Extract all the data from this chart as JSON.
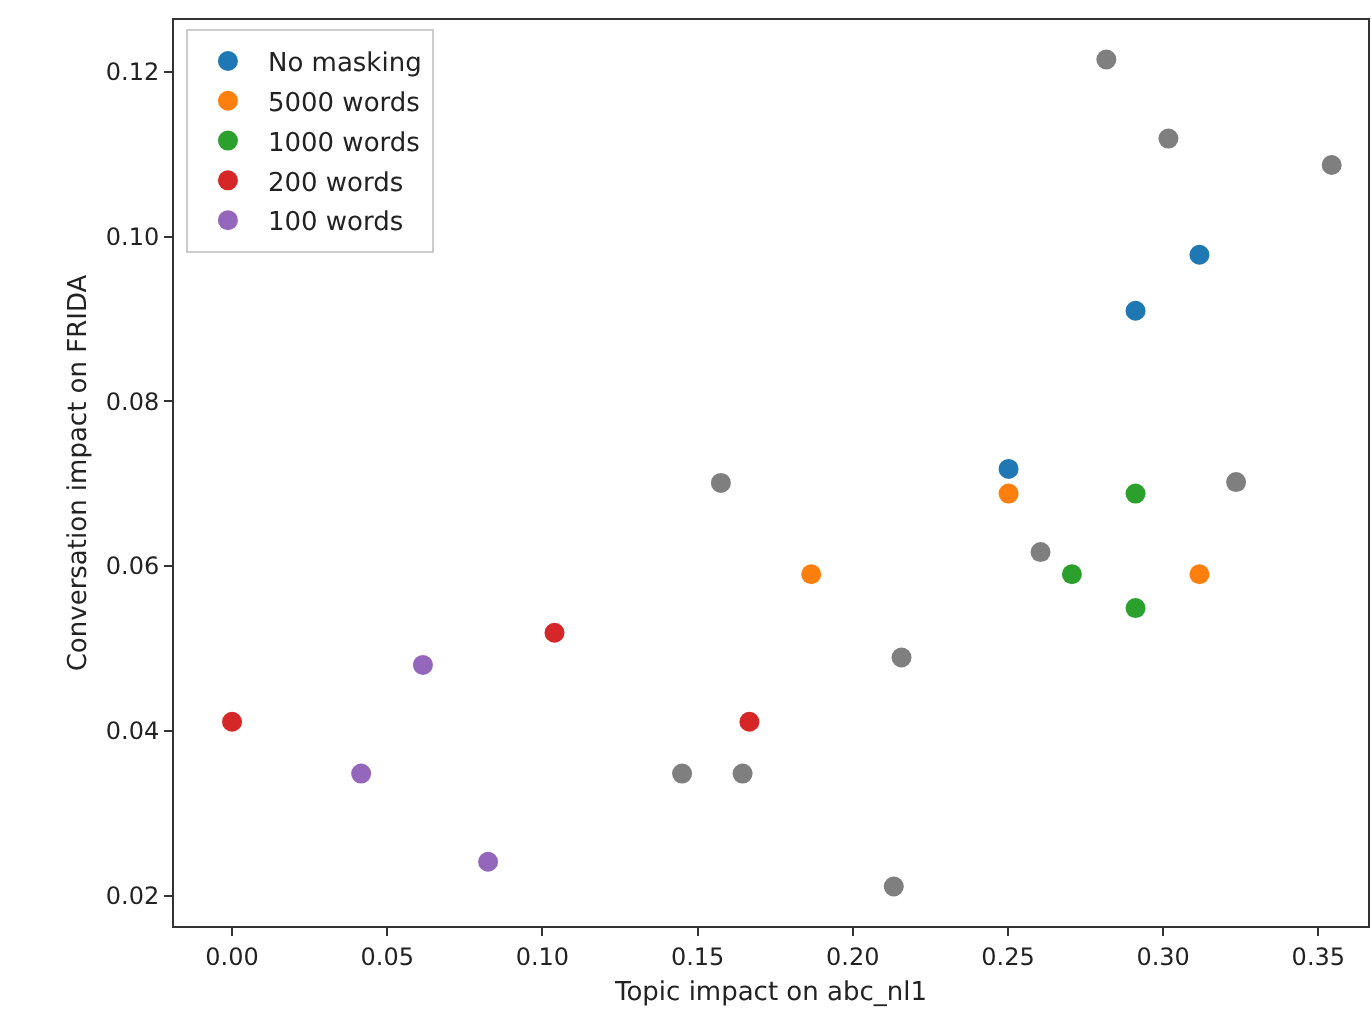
{
  "chart_data": {
    "type": "scatter",
    "xlabel": "Topic impact on abc_nl1",
    "ylabel": "Conversation impact on FRIDA",
    "xlim": [
      -0.0187,
      0.366
    ],
    "ylim": [
      0.0163,
      0.1263
    ],
    "xticks": [
      {
        "value": 0,
        "label": "0.00"
      },
      {
        "value": 0.05,
        "label": "0.05"
      },
      {
        "value": 0.1,
        "label": "0.10"
      },
      {
        "value": 0.15,
        "label": "0.15"
      },
      {
        "value": 0.2,
        "label": "0.20"
      },
      {
        "value": 0.25,
        "label": "0.25"
      },
      {
        "value": 0.3,
        "label": "0.30"
      },
      {
        "value": 0.35,
        "label": "0.35"
      }
    ],
    "yticks": [
      {
        "value": 0.02,
        "label": "0.02"
      },
      {
        "value": 0.04,
        "label": "0.04"
      },
      {
        "value": 0.06,
        "label": "0.06"
      },
      {
        "value": 0.08,
        "label": "0.08"
      },
      {
        "value": 0.1,
        "label": "0.10"
      },
      {
        "value": 0.12,
        "label": "0.12"
      }
    ],
    "legend": "top left",
    "marker": "circle",
    "series": [
      {
        "color": "#7f7f7f",
        "x": [
          0.1575,
          0.145,
          0.1645,
          0.2817,
          0.3017,
          0.3543,
          0.3235,
          0.2605,
          0.2157,
          0.2132
        ],
        "values": [
          0.0701,
          0.0348,
          0.0348,
          0.1215,
          0.1119,
          0.1087,
          0.0702,
          0.0617,
          0.0489,
          0.0211
        ]
      },
      {
        "name": "No masking",
        "color": "#1f77b4",
        "x": [
          0.3117,
          0.2911,
          0.2502
        ],
        "values": [
          0.0978,
          0.091,
          0.0718
        ]
      },
      {
        "name": "5000 words",
        "color": "#ff7f0e",
        "x": [
          0.2502,
          0.1866,
          0.3117
        ],
        "values": [
          0.0688,
          0.059,
          0.059
        ]
      },
      {
        "name": "1000 words",
        "color": "#2ca02c",
        "x": [
          0.2911,
          0.2706,
          0.2911
        ],
        "values": [
          0.0688,
          0.059,
          0.0549
        ]
      },
      {
        "name": "200 words",
        "color": "#d62728",
        "x": [
          0.0,
          0.1039,
          0.1667
        ],
        "values": [
          0.0411,
          0.0519,
          0.0411
        ]
      },
      {
        "name": "100 words",
        "color": "#9467bd",
        "x": [
          0.0615,
          0.0416,
          0.0825
        ],
        "values": [
          0.048,
          0.0348,
          0.0241
        ]
      }
    ]
  }
}
